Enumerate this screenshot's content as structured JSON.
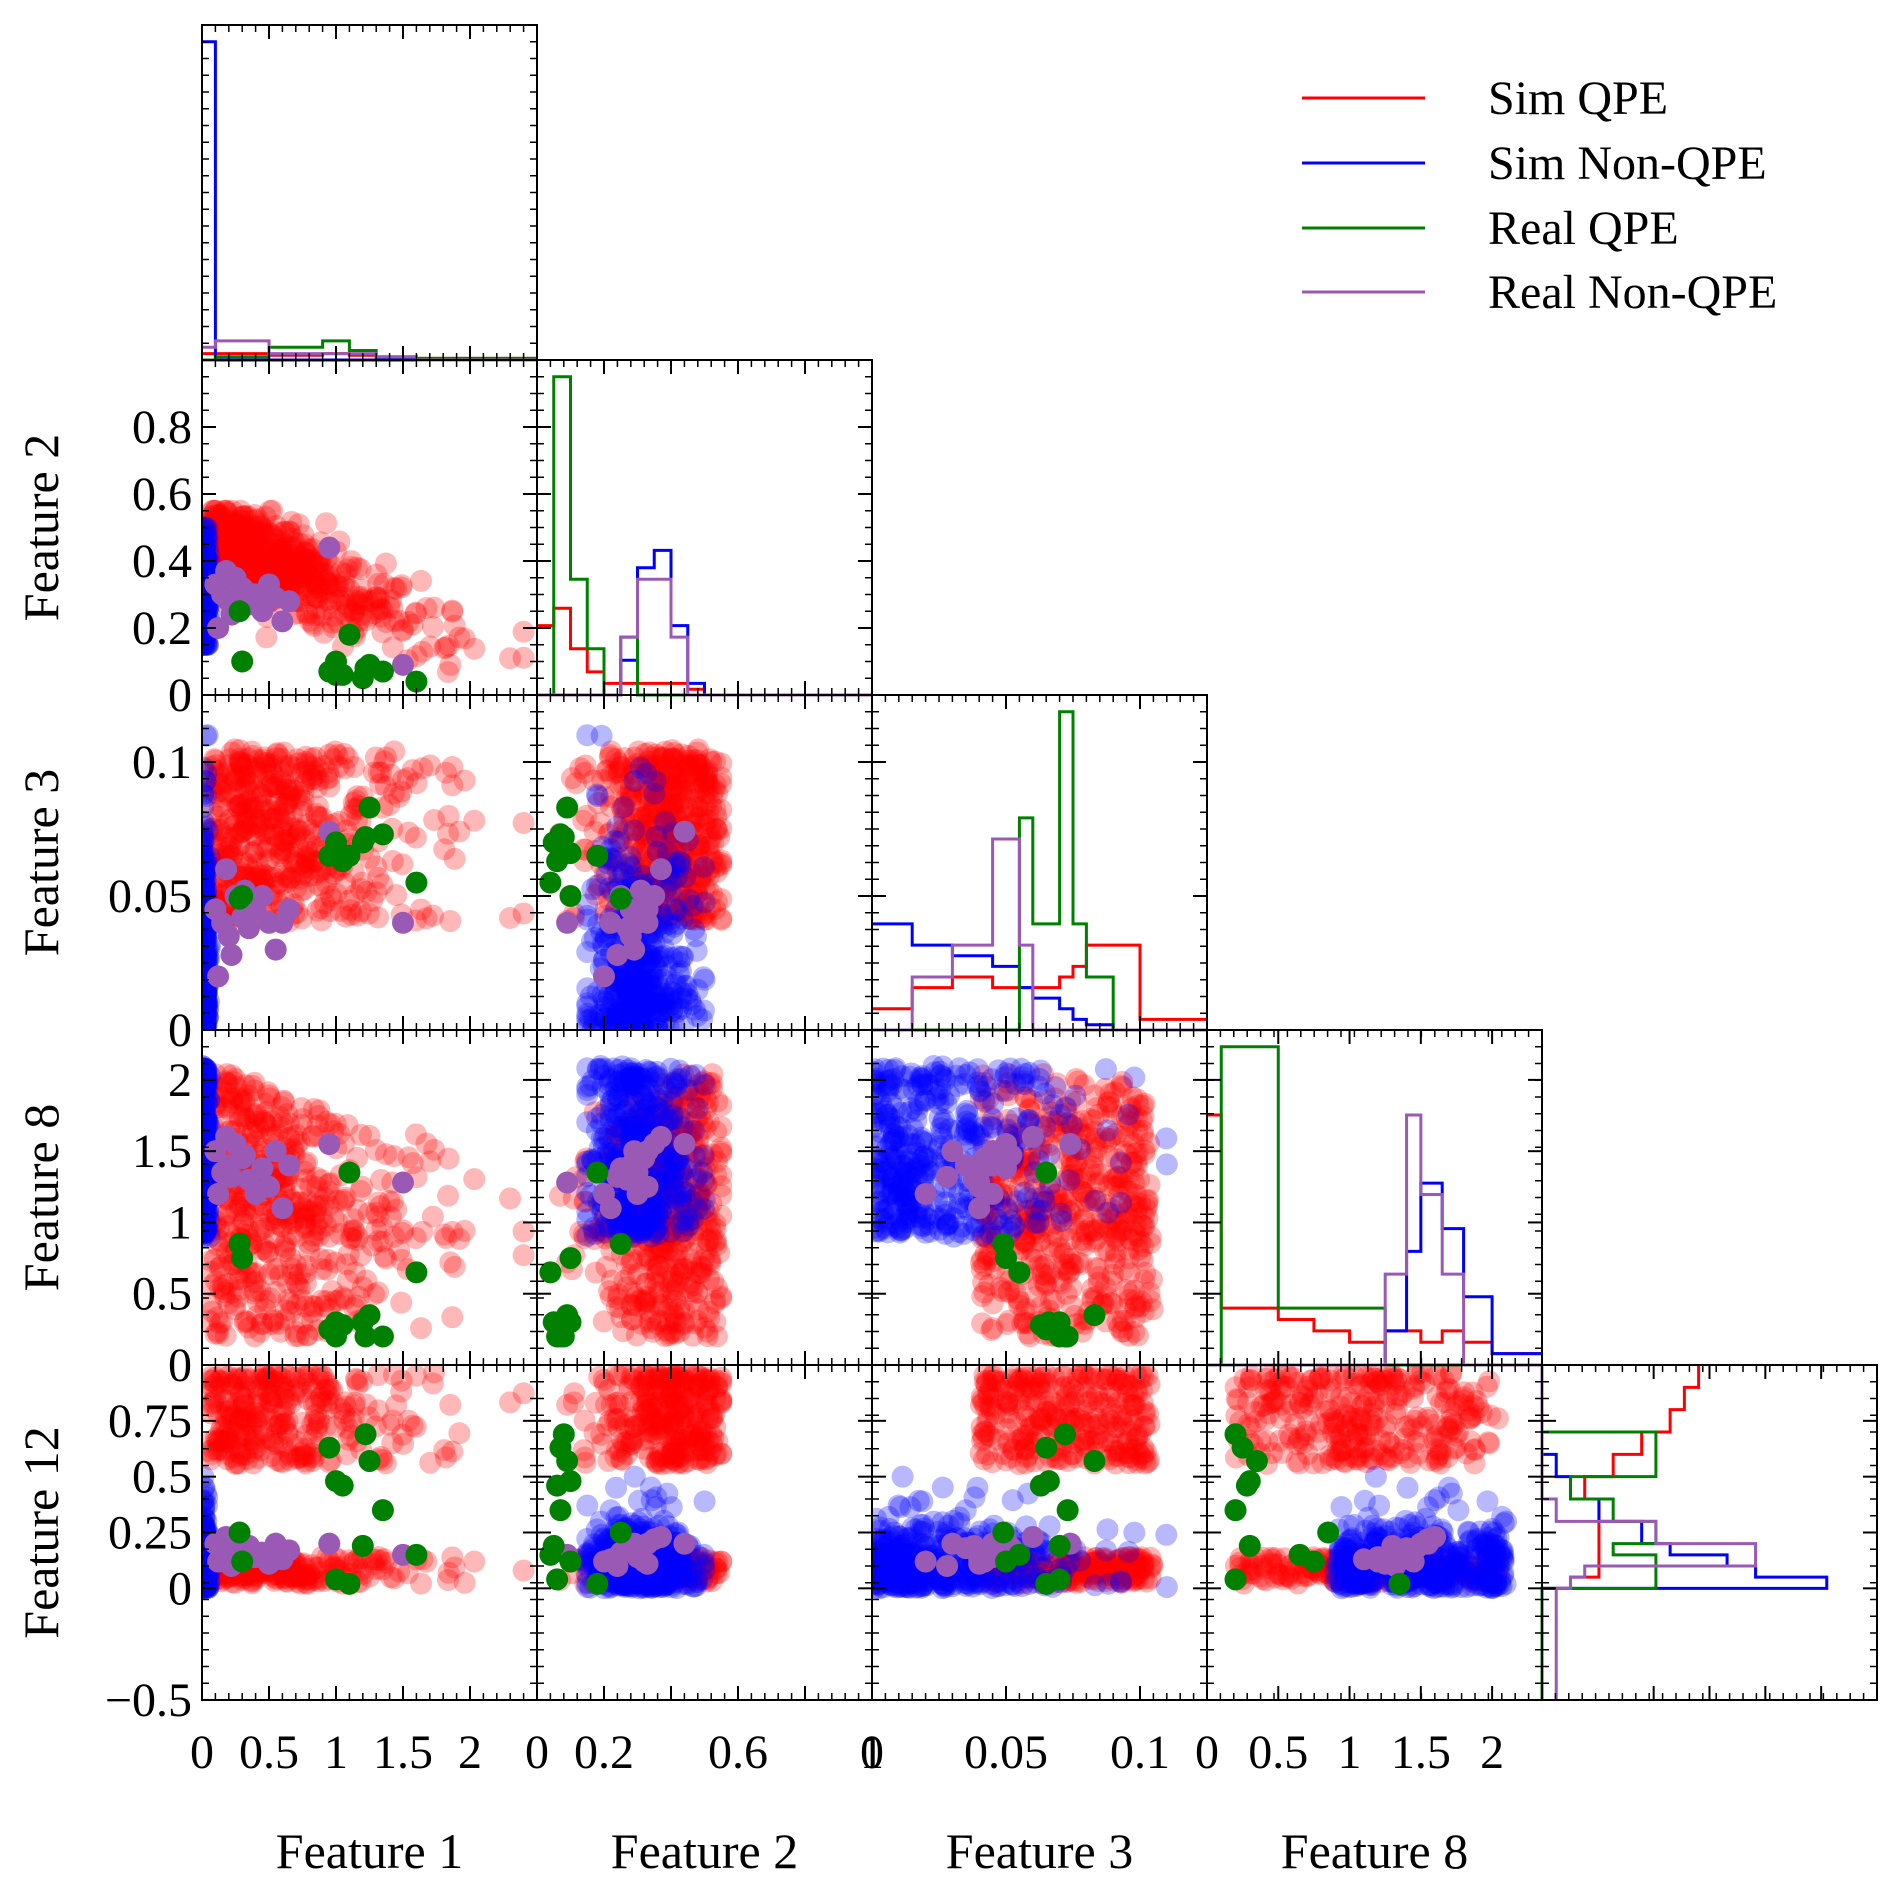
{
  "legend": {
    "placement": "top-right",
    "items": [
      {
        "label": "Sim QPE",
        "color": "#ff0000"
      },
      {
        "label": "Sim Non-QPE",
        "color": "#0000ff"
      },
      {
        "label": "Real QPE",
        "color": "#008000"
      },
      {
        "label": "Real Non-QPE",
        "color": "#9b59b6"
      }
    ]
  },
  "chart_data": {
    "type": "scatter",
    "layout": "corner-plot",
    "features": [
      "Feature 1",
      "Feature 2",
      "Feature 3",
      "Feature 8",
      "Feature 12"
    ],
    "ranges": [
      [
        0,
        2.5
      ],
      [
        0,
        1.0
      ],
      [
        0,
        0.125
      ],
      [
        0,
        2.35
      ],
      [
        -0.5,
        1.0
      ]
    ],
    "ticks": [
      {
        "values": [
          0,
          0.5,
          1,
          1.5,
          2
        ],
        "labels": [
          "0",
          "0.5",
          "1",
          "1.5",
          "2"
        ]
      },
      {
        "values": [
          0,
          0.2,
          0.4,
          0.6,
          0.8
        ],
        "labels": [
          "0",
          "0.2",
          "0.4",
          "0.6",
          "0.8"
        ]
      },
      {
        "values": [
          0,
          0.05,
          0.1
        ],
        "labels": [
          "0",
          "0.05",
          "0.1"
        ]
      },
      {
        "values": [
          0,
          0.5,
          1,
          1.5,
          2
        ],
        "labels": [
          "0",
          "0.5",
          "1",
          "1.5",
          "2"
        ]
      },
      {
        "values": [
          -0.5,
          0,
          0.25,
          0.5,
          0.75
        ],
        "labels": [
          "−0.5",
          "0",
          "0.25",
          "0.5",
          "0.75"
        ]
      }
    ],
    "x_tick_labels_shown": [
      [
        "0",
        "0.5",
        "1",
        "1.5",
        "2"
      ],
      [
        "0",
        "0.2",
        "0.6",
        "1"
      ],
      [
        "0",
        "0.05",
        "0.1"
      ],
      [
        "0",
        "0.5",
        "1",
        "1.5",
        "2"
      ]
    ],
    "grid": false,
    "series": [
      {
        "name": "Sim QPE",
        "color": "#ff0000"
      },
      {
        "name": "Sim Non-QPE",
        "color": "#0000ff"
      },
      {
        "name": "Real QPE",
        "color": "#008000"
      },
      {
        "name": "Real Non-QPE",
        "color": "#9b59b6"
      }
    ],
    "histograms": [
      {
        "feature": "Feature 1",
        "bins": [
          0,
          0.1,
          0.5,
          0.9,
          1.1,
          1.3,
          1.6,
          2.5
        ],
        "series": [
          {
            "name": "Sim QPE",
            "values": [
              0.02,
              0.02,
              0.015,
              0.02,
              0.015,
              0.01,
              0.005
            ]
          },
          {
            "name": "Sim Non-QPE",
            "values": [
              1.0,
              0,
              0,
              0,
              0,
              0,
              0
            ]
          },
          {
            "name": "Real QPE",
            "values": [
              0,
              0.01,
              0.04,
              0.06,
              0.03,
              0.01,
              0.005
            ]
          },
          {
            "name": "Real Non-QPE",
            "values": [
              0.04,
              0.06,
              0.02,
              0.02,
              0.02,
              0.01,
              0
            ]
          }
        ]
      },
      {
        "feature": "Feature 2",
        "bins": [
          0,
          0.05,
          0.1,
          0.15,
          0.2,
          0.25,
          0.3,
          0.35,
          0.4,
          0.45,
          0.5,
          1.0
        ],
        "series": [
          {
            "name": "Sim QPE",
            "values": [
              0.12,
              0.15,
              0.08,
              0.04,
              0.02,
              0.02,
              0.02,
              0.02,
              0.02,
              0.01,
              0
            ]
          },
          {
            "name": "Sim Non-QPE",
            "values": [
              0,
              0,
              0,
              0,
              0,
              0.06,
              0.22,
              0.25,
              0.12,
              0.02,
              0
            ]
          },
          {
            "name": "Real QPE",
            "values": [
              0,
              0.55,
              0.2,
              0.08,
              0,
              0.1,
              0,
              0,
              0,
              0,
              0
            ]
          },
          {
            "name": "Real Non-QPE",
            "values": [
              0,
              0,
              0,
              0,
              0,
              0.1,
              0.2,
              0.2,
              0.1,
              0,
              0
            ]
          }
        ]
      },
      {
        "feature": "Feature 3",
        "bins": [
          0,
          0.015,
          0.03,
          0.045,
          0.055,
          0.06,
          0.07,
          0.075,
          0.08,
          0.09,
          0.1,
          0.125
        ],
        "series": [
          {
            "name": "Sim QPE",
            "values": [
              0.02,
              0.04,
              0.05,
              0.04,
              0.04,
              0.04,
              0.05,
              0.06,
              0.08,
              0.08,
              0.01
            ]
          },
          {
            "name": "Sim Non-QPE",
            "values": [
              0.1,
              0.08,
              0.07,
              0.06,
              0.04,
              0.03,
              0.02,
              0.01,
              0.005,
              0,
              0
            ]
          },
          {
            "name": "Real QPE",
            "values": [
              0,
              0,
              0,
              0,
              0.2,
              0.1,
              0.3,
              0.1,
              0.05,
              0,
              0
            ]
          },
          {
            "name": "Real Non-QPE",
            "values": [
              0,
              0.05,
              0.08,
              0.18,
              0.08,
              0,
              0,
              0,
              0,
              0,
              0
            ]
          }
        ]
      },
      {
        "feature": "Feature 8",
        "bins": [
          0,
          0.1,
          0.5,
          0.75,
          1.0,
          1.25,
          1.4,
          1.5,
          1.65,
          1.8,
          2.0,
          2.35
        ],
        "series": [
          {
            "name": "Sim QPE",
            "values": [
              0.22,
              0.05,
              0.04,
              0.03,
              0.02,
              0.03,
              0.03,
              0.02,
              0.03,
              0.02,
              0.01
            ]
          },
          {
            "name": "Sim Non-QPE",
            "values": [
              0,
              0,
              0,
              0,
              0,
              0.03,
              0.1,
              0.16,
              0.12,
              0.06,
              0.01
            ]
          },
          {
            "name": "Real QPE",
            "values": [
              0,
              0.28,
              0.05,
              0.05,
              0.05,
              0,
              0,
              0,
              0,
              0,
              0
            ]
          },
          {
            "name": "Real Non-QPE",
            "values": [
              0,
              0,
              0,
              0,
              0,
              0.08,
              0.22,
              0.15,
              0.08,
              0,
              0
            ]
          }
        ]
      },
      {
        "feature": "Feature 12",
        "orientation": "horizontal",
        "bins": [
          -0.5,
          0,
          0.05,
          0.1,
          0.15,
          0.2,
          0.3,
          0.4,
          0.5,
          0.6,
          0.7,
          0.8,
          0.9,
          1.0
        ],
        "series": [
          {
            "name": "Sim QPE",
            "values": [
              0,
              0.02,
              0.04,
              0.04,
              0.04,
              0.04,
              0.04,
              0.03,
              0.05,
              0.07,
              0.09,
              0.1,
              0.11
            ]
          },
          {
            "name": "Sim Non-QPE",
            "values": [
              0,
              0.2,
              0.15,
              0.13,
              0.09,
              0.07,
              0.04,
              0.02,
              0.01,
              0,
              0,
              0,
              0
            ]
          },
          {
            "name": "Real QPE",
            "values": [
              0,
              0.08,
              0.08,
              0.08,
              0.05,
              0.08,
              0.05,
              0.02,
              0.08,
              0.08,
              0,
              0,
              0
            ]
          },
          {
            "name": "Real Non-QPE",
            "values": [
              0.01,
              0.02,
              0.03,
              0.15,
              0.15,
              0.08,
              0.01,
              0,
              0,
              0,
              0,
              0,
              0
            ]
          }
        ]
      }
    ],
    "real_qpe_points": [
      {
        "f1": 0.28,
        "f2": 0.25,
        "f3": 0.049,
        "f8": 0.85,
        "f12": 0.25
      },
      {
        "f1": 0.3,
        "f2": 0.1,
        "f3": 0.05,
        "f8": 0.75,
        "f12": 0.12
      },
      {
        "f1": 0.95,
        "f2": 0.07,
        "f3": 0.065,
        "f8": 0.25,
        "f12": 0.63
      },
      {
        "f1": 1.0,
        "f2": 0.06,
        "f3": 0.07,
        "f8": 0.2,
        "f12": 0.04
      },
      {
        "f1": 1.05,
        "f2": 0.06,
        "f3": 0.063,
        "f8": 0.28,
        "f12": 0.46
      },
      {
        "f1": 1.1,
        "f2": 0.18,
        "f3": 0.065,
        "f8": 1.35,
        "f12": 0.02
      },
      {
        "f1": 1.2,
        "f2": 0.05,
        "f3": 0.07,
        "f8": 0.3,
        "f12": 0.19
      },
      {
        "f1": 1.22,
        "f2": 0.08,
        "f3": 0.072,
        "f8": 0.2,
        "f12": 0.69
      },
      {
        "f1": 1.25,
        "f2": 0.09,
        "f3": 0.083,
        "f8": 0.35,
        "f12": 0.57
      },
      {
        "f1": 1.35,
        "f2": 0.07,
        "f3": 0.073,
        "f8": 0.2,
        "f12": 0.35
      },
      {
        "f1": 1.6,
        "f2": 0.04,
        "f3": 0.055,
        "f8": 0.65,
        "f12": 0.15
      },
      {
        "f1": 1.0,
        "f2": 0.1,
        "f3": 0.066,
        "f8": 0.3,
        "f12": 0.48
      }
    ],
    "real_nonqpe_points": [
      {
        "f1": 0.1,
        "f2": 0.33,
        "f3": 0.045,
        "f8": 1.5,
        "f12": 0.2
      },
      {
        "f1": 0.15,
        "f2": 0.3,
        "f3": 0.04,
        "f8": 1.35,
        "f12": 0.15
      },
      {
        "f1": 0.2,
        "f2": 0.28,
        "f3": 0.035,
        "f8": 1.4,
        "f12": 0.18
      },
      {
        "f1": 0.25,
        "f2": 0.35,
        "f3": 0.05,
        "f8": 1.55,
        "f12": 0.22
      },
      {
        "f1": 0.3,
        "f2": 0.32,
        "f3": 0.042,
        "f8": 1.45,
        "f12": 0.12
      },
      {
        "f1": 0.35,
        "f2": 0.27,
        "f3": 0.038,
        "f8": 1.3,
        "f12": 0.19
      },
      {
        "f1": 0.4,
        "f2": 0.3,
        "f3": 0.045,
        "f8": 1.2,
        "f12": 0.14
      },
      {
        "f1": 0.45,
        "f2": 0.25,
        "f3": 0.05,
        "f8": 1.38,
        "f12": 0.16
      },
      {
        "f1": 0.5,
        "f2": 0.33,
        "f3": 0.04,
        "f8": 1.25,
        "f12": 0.11
      },
      {
        "f1": 0.55,
        "f2": 0.29,
        "f3": 0.03,
        "f8": 1.5,
        "f12": 0.2
      },
      {
        "f1": 0.6,
        "f2": 0.22,
        "f3": 0.04,
        "f8": 1.1,
        "f12": 0.13
      },
      {
        "f1": 0.65,
        "f2": 0.28,
        "f3": 0.045,
        "f8": 1.4,
        "f12": 0.17
      },
      {
        "f1": 0.18,
        "f2": 0.37,
        "f3": 0.06,
        "f8": 1.6,
        "f12": 0.23
      },
      {
        "f1": 0.22,
        "f2": 0.24,
        "f3": 0.028,
        "f8": 1.32,
        "f12": 0.1
      },
      {
        "f1": 0.32,
        "f2": 0.31,
        "f3": 0.052,
        "f8": 1.47,
        "f12": 0.18
      },
      {
        "f1": 0.95,
        "f2": 0.44,
        "f3": 0.074,
        "f8": 1.55,
        "f12": 0.2
      },
      {
        "f1": 1.5,
        "f2": 0.09,
        "f3": 0.04,
        "f8": 1.28,
        "f12": 0.15
      },
      {
        "f1": 0.12,
        "f2": 0.2,
        "f3": 0.02,
        "f8": 1.2,
        "f12": 0.12
      }
    ]
  }
}
